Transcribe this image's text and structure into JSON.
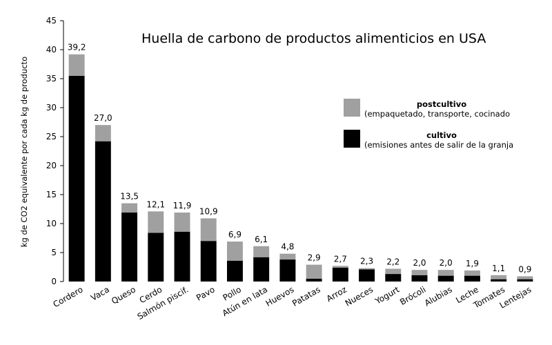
{
  "chart_data": {
    "type": "bar",
    "stacked": true,
    "title": "Huella de carbono de productos alimenticios en USA",
    "xlabel": "",
    "ylabel": "kg de CO2 equivalente por cada kg de producto",
    "ylim": [
      0,
      45
    ],
    "yticks": [
      0,
      5,
      10,
      15,
      20,
      25,
      30,
      35,
      40,
      45
    ],
    "grid": false,
    "legend_position": "right",
    "categories": [
      "Cordero",
      "Vaca",
      "Queso",
      "Cerdo",
      "Salmón piscif.",
      "Pavo",
      "Pollo",
      "Atún en lata",
      "Huevos",
      "Patatas",
      "Arroz",
      "Nueces",
      "Yogurt",
      "Brócoli",
      "Alubias",
      "Leche",
      "Tomates",
      "Lentejas"
    ],
    "totals_labels": [
      "39,2",
      "27,0",
      "13,5",
      "12,1",
      "11,9",
      "10,9",
      "6,9",
      "6,1",
      "4,8",
      "2,9",
      "2,7",
      "2,3",
      "2,2",
      "2,0",
      "2,0",
      "1,9",
      "1,1",
      "0,9"
    ],
    "series": [
      {
        "name": "cultivo",
        "description": "(emisiones antes de salir de la granja",
        "color": "#000000",
        "values": [
          35.5,
          24.2,
          11.9,
          8.4,
          8.6,
          7.0,
          3.6,
          4.2,
          3.8,
          0.5,
          2.4,
          2.1,
          1.3,
          1.1,
          1.0,
          1.0,
          0.4,
          0.4
        ]
      },
      {
        "name": "postcultivo",
        "description": "(empaquetado, transporte, cocinado",
        "color": "#a0a0a0",
        "values": [
          3.7,
          2.8,
          1.6,
          3.7,
          3.3,
          3.9,
          3.3,
          1.9,
          1.0,
          2.4,
          0.3,
          0.2,
          0.9,
          0.9,
          1.0,
          0.9,
          0.7,
          0.5
        ]
      }
    ]
  }
}
